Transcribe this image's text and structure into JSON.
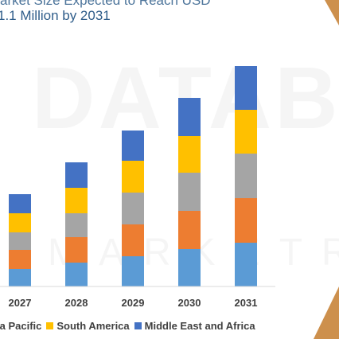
{
  "header": {
    "line1": "arket Size Expected to Reach USD",
    "line2": "1.1 Million by 2031"
  },
  "watermark": {
    "main": "DATABR",
    "sub": "MARKETRE"
  },
  "colors": {
    "north_america": "#5b9bd5",
    "europe": "#ed7d31",
    "asia_pacific": "#a5a5a5",
    "south_america": "#ffc000",
    "middle_east_africa": "#4472c4",
    "corner": "#c8843a"
  },
  "chart_data": {
    "type": "bar",
    "stacked": true,
    "categories": [
      "2027",
      "2028",
      "2029",
      "2030",
      "2031"
    ],
    "series": [
      {
        "key": "north_america",
        "values": [
          22,
          30,
          38,
          47,
          55
        ]
      },
      {
        "key": "europe",
        "values": [
          24,
          32,
          40,
          48,
          56
        ]
      },
      {
        "key": "asia_pacific",
        "values": [
          22,
          30,
          40,
          48,
          56
        ]
      },
      {
        "key": "south_america",
        "values": [
          24,
          32,
          40,
          46,
          55
        ]
      },
      {
        "key": "middle_east_africa",
        "values": [
          24,
          32,
          38,
          48,
          55
        ]
      }
    ],
    "legend_visible": [
      {
        "key": "asia_pacific",
        "label": "ia Pacific"
      },
      {
        "key": "south_america",
        "label": "South America"
      },
      {
        "key": "middle_east_africa",
        "label": "Middle East and Africa"
      }
    ],
    "ylim": [
      0,
      300
    ],
    "grid": false,
    "legend_position": "bottom"
  }
}
